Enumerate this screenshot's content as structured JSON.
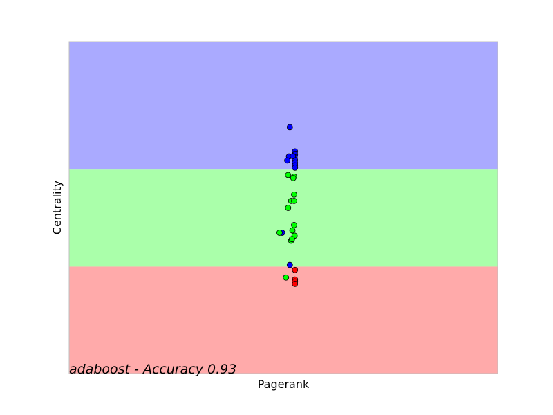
{
  "chart_data": {
    "type": "scatter",
    "title": "",
    "xlabel": "Pagerank",
    "ylabel": "Centrality",
    "annotation": "adaboost - Accuracy 0.93",
    "xlim": [
      0,
      1
    ],
    "ylim": [
      0,
      1
    ],
    "grid": false,
    "ticks": false,
    "regions": [
      {
        "class": "blue",
        "y_from": 0.614,
        "y_to": 1.0,
        "color": "#aaaaff"
      },
      {
        "class": "green",
        "y_from": 0.322,
        "y_to": 0.614,
        "color": "#aaffaa"
      },
      {
        "class": "red",
        "y_from": 0.0,
        "y_to": 0.322,
        "color": "#ffaaaa"
      }
    ],
    "series": [
      {
        "class": "blue",
        "color": "#0000ff",
        "points": [
          [
            0.515,
            0.742
          ],
          [
            0.527,
            0.669
          ],
          [
            0.527,
            0.66
          ],
          [
            0.526,
            0.652
          ],
          [
            0.527,
            0.643
          ],
          [
            0.527,
            0.635
          ],
          [
            0.527,
            0.627
          ],
          [
            0.527,
            0.62
          ],
          [
            0.513,
            0.654
          ],
          [
            0.509,
            0.642
          ],
          [
            0.522,
            0.655
          ],
          [
            0.497,
            0.424
          ],
          [
            0.515,
            0.327
          ]
        ]
      },
      {
        "class": "green",
        "color": "#00ff00",
        "points": [
          [
            0.511,
            0.598
          ],
          [
            0.525,
            0.593
          ],
          [
            0.523,
            0.589
          ],
          [
            0.525,
            0.539
          ],
          [
            0.518,
            0.52
          ],
          [
            0.525,
            0.52
          ],
          [
            0.511,
            0.499
          ],
          [
            0.525,
            0.447
          ],
          [
            0.521,
            0.431
          ],
          [
            0.526,
            0.415
          ],
          [
            0.518,
            0.4
          ],
          [
            0.52,
            0.405
          ],
          [
            0.491,
            0.424
          ],
          [
            0.506,
            0.289
          ]
        ]
      },
      {
        "class": "red",
        "color": "#ff0000",
        "points": [
          [
            0.527,
            0.312
          ],
          [
            0.527,
            0.283
          ],
          [
            0.527,
            0.277
          ],
          [
            0.527,
            0.27
          ]
        ]
      }
    ]
  }
}
